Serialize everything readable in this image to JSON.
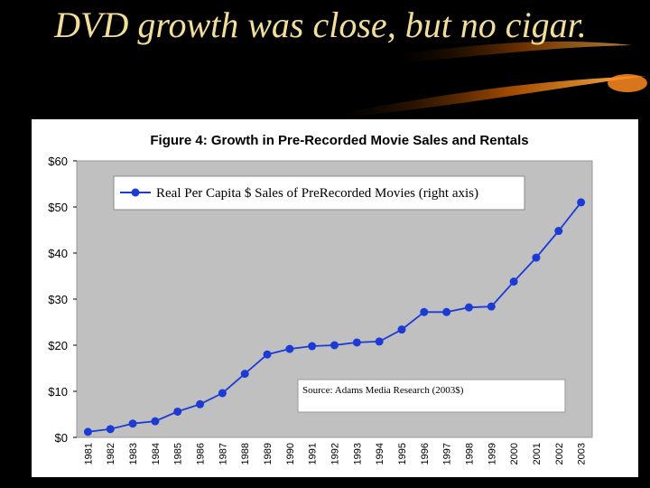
{
  "slide": {
    "title": "DVD growth was close, but no cigar."
  },
  "chart_data": {
    "type": "line",
    "title": "Figure 4: Growth in Pre-Recorded Movie Sales and Rentals",
    "x": [
      "1981",
      "1982",
      "1983",
      "1984",
      "1985",
      "1986",
      "1987",
      "1988",
      "1989",
      "1990",
      "1991",
      "1992",
      "1993",
      "1994",
      "1995",
      "1996",
      "1997",
      "1998",
      "1999",
      "2000",
      "2001",
      "2002",
      "2003"
    ],
    "series": [
      {
        "name": "Real Per Capita $ Sales of PreRecorded Movies (right axis)",
        "values": [
          1.2,
          1.8,
          3.0,
          3.5,
          5.6,
          7.2,
          9.6,
          13.8,
          18.0,
          19.2,
          19.8,
          20.0,
          20.6,
          20.8,
          23.4,
          27.2,
          27.2,
          28.2,
          28.4,
          33.8,
          39.0,
          44.8,
          51.0
        ],
        "color": "#1c3bd6"
      }
    ],
    "ylim": [
      0,
      60
    ],
    "yticks": [
      0,
      10,
      20,
      30,
      40,
      50,
      60
    ],
    "ytick_labels": [
      "$0",
      "$10",
      "$20",
      "$30",
      "$40",
      "$50",
      "$60"
    ],
    "legend_placement": "top-left",
    "annotation": "Source: Adams Media Research (2003$)",
    "grid": false,
    "plot_background": "#c0c0c0"
  }
}
